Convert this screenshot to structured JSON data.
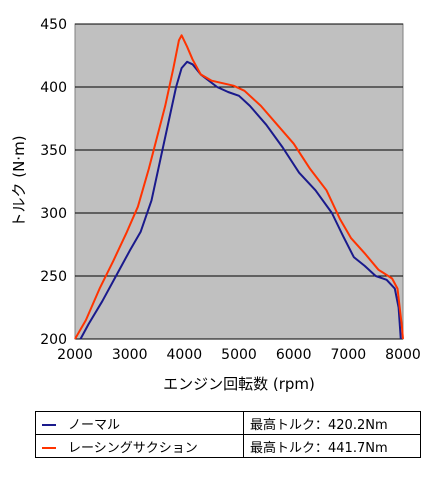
{
  "chart_data": {
    "type": "line",
    "title": "",
    "xlabel": "エンジン回転数 (rpm)",
    "ylabel": "トルク (N·m)",
    "xlim": [
      2000,
      8000
    ],
    "ylim": [
      200,
      450
    ],
    "xticks": [
      "2000",
      "3000",
      "4000",
      "5000",
      "6000",
      "7000",
      "8000"
    ],
    "yticks": [
      "200",
      "250",
      "300",
      "350",
      "400",
      "450"
    ],
    "grid": "horizontal",
    "plot_background": "#c0c0c0",
    "series": [
      {
        "name": "ノーマル",
        "color": "#1a1a8c",
        "peak_label": "最高トルク：420.2Nm",
        "points": [
          [
            2100,
            200
          ],
          [
            2250,
            212
          ],
          [
            2500,
            230
          ],
          [
            2750,
            250
          ],
          [
            3000,
            270
          ],
          [
            3200,
            285
          ],
          [
            3400,
            310
          ],
          [
            3550,
            340
          ],
          [
            3700,
            370
          ],
          [
            3850,
            400
          ],
          [
            3950,
            415
          ],
          [
            4050,
            420
          ],
          [
            4150,
            418
          ],
          [
            4300,
            410
          ],
          [
            4600,
            400
          ],
          [
            4800,
            396
          ],
          [
            5000,
            393
          ],
          [
            5200,
            385
          ],
          [
            5500,
            370
          ],
          [
            5800,
            352
          ],
          [
            6100,
            332
          ],
          [
            6400,
            318
          ],
          [
            6700,
            300
          ],
          [
            6900,
            282
          ],
          [
            7100,
            265
          ],
          [
            7300,
            258
          ],
          [
            7500,
            250
          ],
          [
            7700,
            247
          ],
          [
            7850,
            240
          ],
          [
            7920,
            225
          ],
          [
            7960,
            200
          ]
        ]
      },
      {
        "name": "レーシングサクション",
        "color": "#ff3300",
        "peak_label": "最高トルク：441.7Nm",
        "points": [
          [
            2000,
            200
          ],
          [
            2200,
            215
          ],
          [
            2450,
            240
          ],
          [
            2700,
            262
          ],
          [
            2950,
            285
          ],
          [
            3150,
            305
          ],
          [
            3350,
            335
          ],
          [
            3500,
            360
          ],
          [
            3650,
            385
          ],
          [
            3800,
            415
          ],
          [
            3900,
            437
          ],
          [
            3950,
            441
          ],
          [
            4050,
            432
          ],
          [
            4150,
            422
          ],
          [
            4300,
            410
          ],
          [
            4500,
            405
          ],
          [
            4700,
            403
          ],
          [
            4900,
            401
          ],
          [
            5100,
            397
          ],
          [
            5400,
            385
          ],
          [
            5700,
            370
          ],
          [
            6000,
            355
          ],
          [
            6300,
            335
          ],
          [
            6600,
            318
          ],
          [
            6850,
            295
          ],
          [
            7050,
            280
          ],
          [
            7300,
            268
          ],
          [
            7550,
            255
          ],
          [
            7800,
            248
          ],
          [
            7900,
            240
          ],
          [
            7980,
            210
          ],
          [
            8000,
            200
          ]
        ]
      }
    ]
  }
}
